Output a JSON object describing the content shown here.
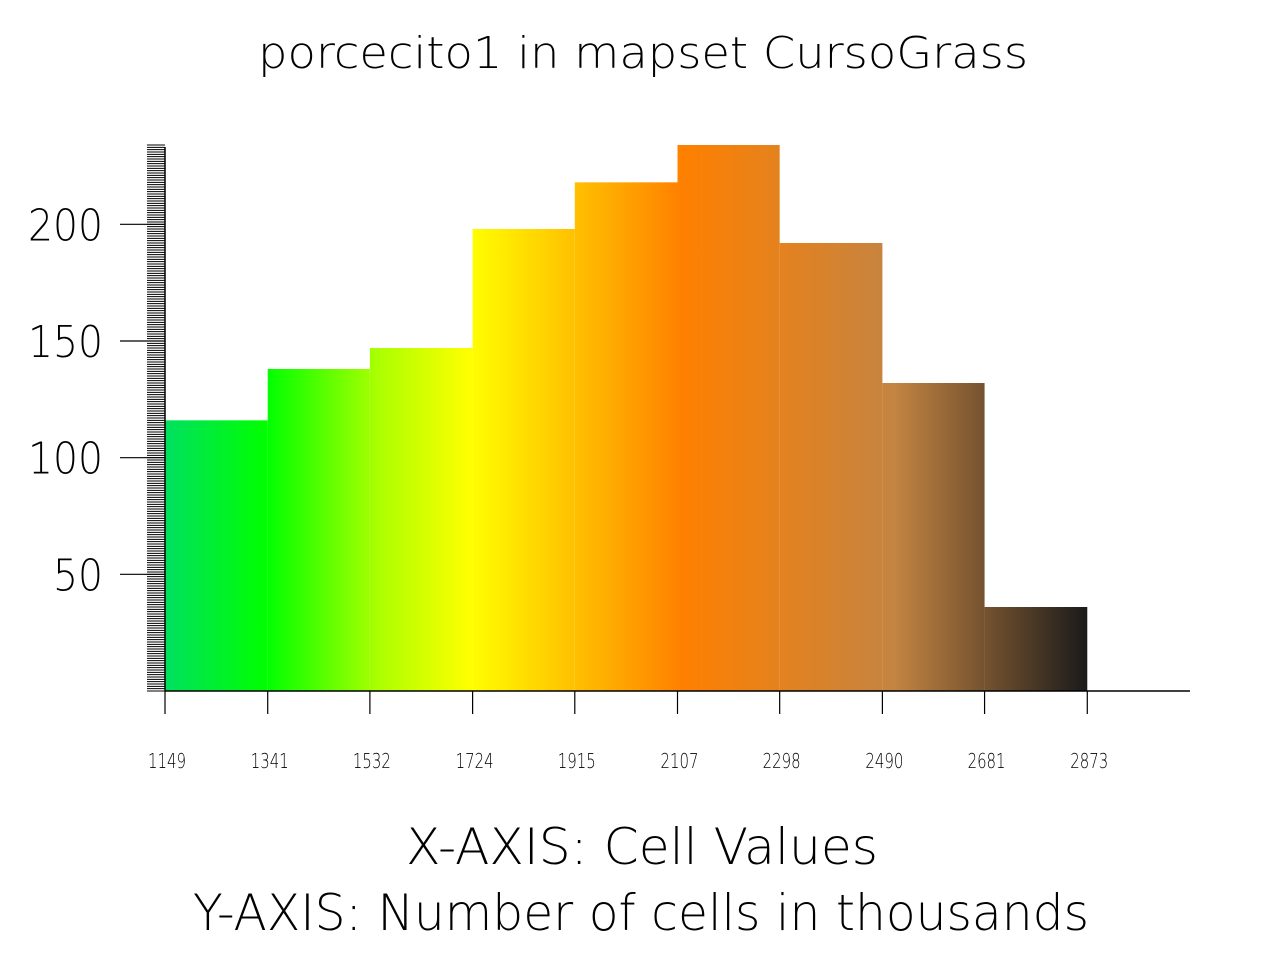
{
  "chart_data": {
    "type": "bar",
    "title": "porcecito1 in mapset CursoGrass",
    "xlabel": "X-AXIS: Cell Values",
    "ylabel": "Y-AXIS: Number of cells in thousands",
    "x_ticks": [
      "1149",
      "1341",
      "1532",
      "1724",
      "1915",
      "2107",
      "2298",
      "2490",
      "2681",
      "2873"
    ],
    "y_ticks": [
      "50",
      "100",
      "150",
      "200"
    ],
    "categories": [
      "1149-1341",
      "1341-1532",
      "1532-1724",
      "1724-1915",
      "1915-2107",
      "2107-2298",
      "2298-2490",
      "2490-2681",
      "2681-2873"
    ],
    "values": [
      116,
      138,
      147,
      198,
      218,
      234,
      192,
      132,
      36
    ],
    "x_range": [
      1149,
      3065
    ],
    "ylim": [
      0,
      234
    ],
    "grid": false,
    "legend": "none",
    "colors": {
      "ramp": [
        "#00e060",
        "#00ff00",
        "#aaff00",
        "#ffff00",
        "#ff8000",
        "#c48442",
        "#1a1a1a"
      ],
      "axis": "#000000",
      "background": "#ffffff"
    }
  }
}
